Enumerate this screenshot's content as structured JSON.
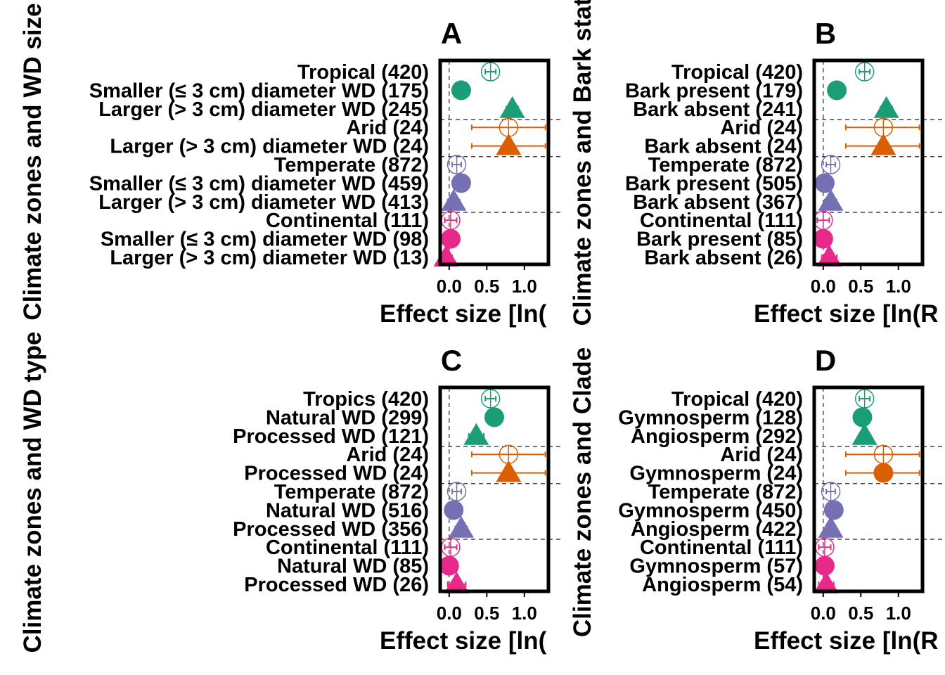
{
  "chart_data": [
    {
      "type": "forest",
      "title": "A",
      "xlabel": "Effect size [ln(",
      "ylabel": "Climate zones and WD size",
      "xticks": [
        "0.0",
        "0.5",
        "1.0"
      ],
      "xlim": [
        -0.12,
        1.32
      ],
      "rows": [
        {
          "label": "Tropical (420)",
          "value": 0.55,
          "lo": 0.48,
          "hi": 0.62,
          "shape": "circle-open",
          "color": "#1b9e77"
        },
        {
          "label": "Smaller (≤ 3 cm) diameter WD (175)",
          "value": 0.16,
          "lo": 0.08,
          "hi": 0.24,
          "shape": "circle",
          "color": "#1b9e77"
        },
        {
          "label": "Larger (> 3 cm) diameter WD (245)",
          "value": 0.84,
          "lo": 0.76,
          "hi": 0.92,
          "shape": "triangle",
          "color": "#1b9e77"
        },
        {
          "label": "Arid (24)",
          "value": 0.79,
          "lo": 0.3,
          "hi": 1.28,
          "shape": "circle-open",
          "color": "#d95f02"
        },
        {
          "label": "Larger (> 3 cm) diameter WD (24)",
          "value": 0.79,
          "lo": 0.3,
          "hi": 1.28,
          "shape": "triangle",
          "color": "#d95f02"
        },
        {
          "label": "Temperate (872)",
          "value": 0.1,
          "lo": 0.04,
          "hi": 0.16,
          "shape": "circle-open",
          "color": "#7570b3"
        },
        {
          "label": "Smaller (≤ 3 cm) diameter WD (459)",
          "value": 0.16,
          "lo": 0.08,
          "hi": 0.24,
          "shape": "circle",
          "color": "#7570b3"
        },
        {
          "label": "Larger (> 3 cm) diameter WD (413)",
          "value": 0.06,
          "lo": -0.02,
          "hi": 0.14,
          "shape": "triangle",
          "color": "#7570b3"
        },
        {
          "label": "Continental (111)",
          "value": 0.02,
          "lo": -0.06,
          "hi": 0.1,
          "shape": "circle-open",
          "color": "#e7298a"
        },
        {
          "label": "Smaller (≤ 3 cm) diameter WD (98)",
          "value": 0.02,
          "lo": -0.06,
          "hi": 0.1,
          "shape": "circle",
          "color": "#e7298a"
        },
        {
          "label": "Larger (> 3 cm) diameter WD (13)",
          "value": -0.04,
          "lo": -0.12,
          "hi": 0.04,
          "shape": "triangle",
          "color": "#e7298a"
        }
      ],
      "separators_after": [
        2,
        4,
        7
      ]
    },
    {
      "type": "forest",
      "title": "B",
      "xlabel": "Effect size [ln(R",
      "ylabel": "Climate zones and Bark stat",
      "xticks": [
        "0.0",
        "0.5",
        "1.0"
      ],
      "xlim": [
        -0.12,
        1.32
      ],
      "rows": [
        {
          "label": "Tropical (420)",
          "value": 0.55,
          "lo": 0.48,
          "hi": 0.62,
          "shape": "circle-open",
          "color": "#1b9e77"
        },
        {
          "label": "Bark present (179)",
          "value": 0.18,
          "lo": 0.1,
          "hi": 0.26,
          "shape": "circle",
          "color": "#1b9e77"
        },
        {
          "label": "Bark  absent (241)",
          "value": 0.84,
          "lo": 0.76,
          "hi": 0.92,
          "shape": "triangle",
          "color": "#1b9e77"
        },
        {
          "label": "Arid (24)",
          "value": 0.8,
          "lo": 0.3,
          "hi": 1.28,
          "shape": "circle-open",
          "color": "#d95f02"
        },
        {
          "label": "Bark  absent (24)",
          "value": 0.8,
          "lo": 0.3,
          "hi": 1.28,
          "shape": "triangle",
          "color": "#d95f02"
        },
        {
          "label": "Temperate (872)",
          "value": 0.1,
          "lo": 0.04,
          "hi": 0.16,
          "shape": "circle-open",
          "color": "#7570b3"
        },
        {
          "label": "Bark  present (505)",
          "value": 0.02,
          "lo": -0.06,
          "hi": 0.1,
          "shape": "circle",
          "color": "#7570b3"
        },
        {
          "label": "Bark  absent (367)",
          "value": 0.1,
          "lo": 0.02,
          "hi": 0.18,
          "shape": "triangle",
          "color": "#7570b3"
        },
        {
          "label": "Continental (111)",
          "value": 0.0,
          "lo": -0.08,
          "hi": 0.08,
          "shape": "circle-open",
          "color": "#e7298a"
        },
        {
          "label": "Bark present (85)",
          "value": 0.0,
          "lo": -0.08,
          "hi": 0.08,
          "shape": "circle",
          "color": "#e7298a"
        },
        {
          "label": "Bark absent (26)",
          "value": 0.08,
          "lo": -0.02,
          "hi": 0.18,
          "shape": "triangle",
          "color": "#e7298a"
        }
      ],
      "separators_after": [
        2,
        4,
        7
      ]
    },
    {
      "type": "forest",
      "title": "C",
      "xlabel": "Effect size [ln(",
      "ylabel": "Climate zones and WD type",
      "xticks": [
        "0.0",
        "0.5",
        "1.0"
      ],
      "xlim": [
        -0.12,
        1.32
      ],
      "rows": [
        {
          "label": "Tropics (420)",
          "value": 0.55,
          "lo": 0.48,
          "hi": 0.62,
          "shape": "circle-open",
          "color": "#1b9e77"
        },
        {
          "label": "Natural WD (299)",
          "value": 0.6,
          "lo": 0.53,
          "hi": 0.67,
          "shape": "circle",
          "color": "#1b9e77"
        },
        {
          "label": "Processed WD (121)",
          "value": 0.36,
          "lo": 0.26,
          "hi": 0.46,
          "shape": "triangle",
          "color": "#1b9e77"
        },
        {
          "label": "Arid (24)",
          "value": 0.79,
          "lo": 0.3,
          "hi": 1.28,
          "shape": "circle-open",
          "color": "#d95f02"
        },
        {
          "label": "Processed WD (24)",
          "value": 0.79,
          "lo": 0.3,
          "hi": 1.28,
          "shape": "triangle",
          "color": "#d95f02"
        },
        {
          "label": "Temperate (872)",
          "value": 0.1,
          "lo": 0.04,
          "hi": 0.16,
          "shape": "circle-open",
          "color": "#7570b3"
        },
        {
          "label": "Natural WD (516)",
          "value": 0.06,
          "lo": -0.02,
          "hi": 0.14,
          "shape": "circle",
          "color": "#7570b3"
        },
        {
          "label": "Processed WD (356)",
          "value": 0.16,
          "lo": 0.08,
          "hi": 0.24,
          "shape": "triangle",
          "color": "#7570b3"
        },
        {
          "label": "Continental (111)",
          "value": 0.02,
          "lo": -0.06,
          "hi": 0.1,
          "shape": "circle-open",
          "color": "#e7298a"
        },
        {
          "label": "Natural WD (85)",
          "value": 0.0,
          "lo": -0.08,
          "hi": 0.08,
          "shape": "circle",
          "color": "#e7298a"
        },
        {
          "label": "Processed WD (26)",
          "value": 0.1,
          "lo": -0.02,
          "hi": 0.22,
          "shape": "triangle",
          "color": "#e7298a"
        }
      ],
      "separators_after": [
        2,
        4,
        7
      ]
    },
    {
      "type": "forest",
      "title": "D",
      "xlabel": "Effect size [ln(R",
      "ylabel": "Climate zones and Clade",
      "xticks": [
        "0.0",
        "0.5",
        "1.0"
      ],
      "xlim": [
        -0.12,
        1.32
      ],
      "rows": [
        {
          "label": "Tropical (420)",
          "value": 0.55,
          "lo": 0.48,
          "hi": 0.62,
          "shape": "circle-open",
          "color": "#1b9e77"
        },
        {
          "label": "Gymnosperm (128)",
          "value": 0.52,
          "lo": 0.45,
          "hi": 0.59,
          "shape": "circle",
          "color": "#1b9e77"
        },
        {
          "label": "Angiosperm (292)",
          "value": 0.55,
          "lo": 0.48,
          "hi": 0.62,
          "shape": "triangle",
          "color": "#1b9e77"
        },
        {
          "label": "Arid (24)",
          "value": 0.8,
          "lo": 0.3,
          "hi": 1.28,
          "shape": "circle-open",
          "color": "#d95f02"
        },
        {
          "label": "Gymnosperm (24)",
          "value": 0.8,
          "lo": 0.3,
          "hi": 1.28,
          "shape": "circle",
          "color": "#d95f02"
        },
        {
          "label": "Temperate (872)",
          "value": 0.1,
          "lo": 0.04,
          "hi": 0.16,
          "shape": "circle-open",
          "color": "#7570b3"
        },
        {
          "label": "Gymnosperm (450)",
          "value": 0.14,
          "lo": 0.07,
          "hi": 0.21,
          "shape": "circle",
          "color": "#7570b3"
        },
        {
          "label": "Angiosperm (422)",
          "value": 0.1,
          "lo": 0.03,
          "hi": 0.17,
          "shape": "triangle",
          "color": "#7570b3"
        },
        {
          "label": "Continental (111)",
          "value": 0.02,
          "lo": -0.06,
          "hi": 0.1,
          "shape": "circle-open",
          "color": "#e7298a"
        },
        {
          "label": "Gymnosperm (57)",
          "value": 0.02,
          "lo": -0.06,
          "hi": 0.1,
          "shape": "circle",
          "color": "#e7298a"
        },
        {
          "label": "Angiosperm (54)",
          "value": 0.04,
          "lo": -0.06,
          "hi": 0.14,
          "shape": "triangle",
          "color": "#e7298a"
        }
      ],
      "separators_after": [
        2,
        4,
        7
      ]
    }
  ],
  "figure": {
    "ylabel_left": "Climate zones and WD type",
    "ylabel_left_upper": "Climate zones and WD size",
    "ylabel_mid_upper": "Climate zones and Bark stat",
    "ylabel_mid_lower": "Climate zones and Clade"
  }
}
